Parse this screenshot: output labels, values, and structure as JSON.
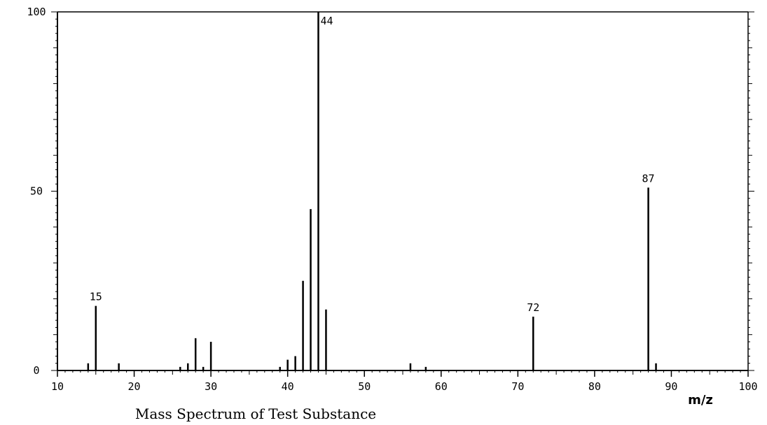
{
  "caption": "Mass Spectrum of Test Substance",
  "chart_data": {
    "type": "bar",
    "xlabel": "m/z",
    "xlim": [
      10,
      100
    ],
    "ylim": [
      0,
      100
    ],
    "x_ticks": [
      "10",
      "20",
      "30",
      "40",
      "50",
      "60",
      "70",
      "80",
      "90",
      "100"
    ],
    "y_ticks": [
      "0",
      "50",
      "100"
    ],
    "peaks": [
      {
        "mz": 14,
        "intensity": 2
      },
      {
        "mz": 15,
        "intensity": 18,
        "label": "15"
      },
      {
        "mz": 18,
        "intensity": 2
      },
      {
        "mz": 26,
        "intensity": 1
      },
      {
        "mz": 27,
        "intensity": 2
      },
      {
        "mz": 28,
        "intensity": 9
      },
      {
        "mz": 29,
        "intensity": 1
      },
      {
        "mz": 30,
        "intensity": 8
      },
      {
        "mz": 39,
        "intensity": 1
      },
      {
        "mz": 40,
        "intensity": 3
      },
      {
        "mz": 41,
        "intensity": 4
      },
      {
        "mz": 42,
        "intensity": 25
      },
      {
        "mz": 43,
        "intensity": 45
      },
      {
        "mz": 44,
        "intensity": 100,
        "label": "44"
      },
      {
        "mz": 45,
        "intensity": 17
      },
      {
        "mz": 56,
        "intensity": 2
      },
      {
        "mz": 58,
        "intensity": 1
      },
      {
        "mz": 72,
        "intensity": 15,
        "label": "72"
      },
      {
        "mz": 87,
        "intensity": 51,
        "label": "87"
      },
      {
        "mz": 88,
        "intensity": 2
      }
    ]
  }
}
